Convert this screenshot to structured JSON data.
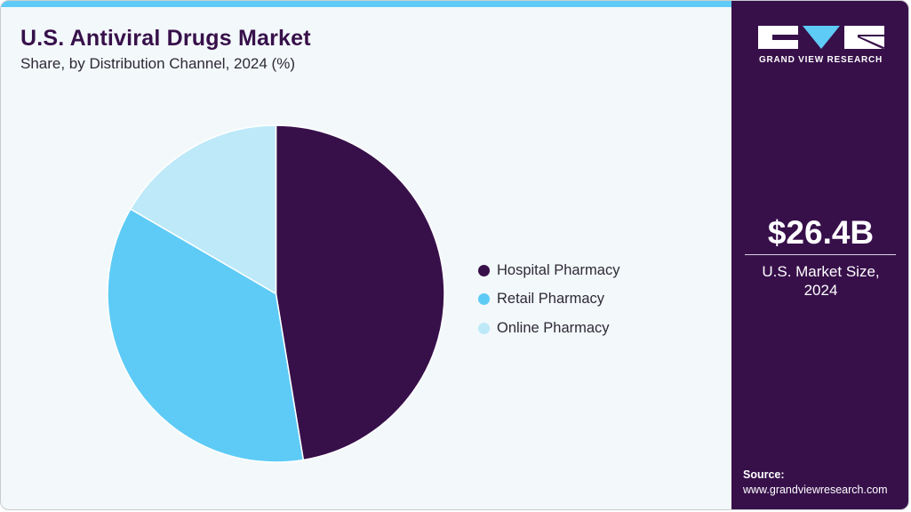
{
  "header": {
    "title": "U.S. Antiviral Drugs Market",
    "subtitle": "Share, by Distribution Channel, 2024 (%)"
  },
  "colors": {
    "accent_bar": "#5ecbf6",
    "brand_purple": "#37104a",
    "background": "#f3f8fb"
  },
  "chart_data": {
    "type": "pie",
    "title": "U.S. Antiviral Drugs Market",
    "subtitle": "Share, by Distribution Channel, 2024 (%)",
    "categories": [
      "Hospital Pharmacy",
      "Retail Pharmacy",
      "Online Pharmacy"
    ],
    "values": [
      47.4,
      36.0,
      16.6
    ],
    "colors": [
      "#37104a",
      "#5ecbf6",
      "#bde9f9"
    ],
    "start_angle_deg": 0,
    "direction": "clockwise",
    "legend_position": "right",
    "data_labels": false
  },
  "legend": {
    "items": [
      {
        "label": "Hospital Pharmacy",
        "color": "#37104a"
      },
      {
        "label": "Retail Pharmacy",
        "color": "#5ecbf6"
      },
      {
        "label": "Online Pharmacy",
        "color": "#bde9f9"
      }
    ]
  },
  "sidebar": {
    "brand": "GRAND VIEW RESEARCH",
    "market_size": "$26.4B",
    "market_caption_line1": "U.S. Market Size,",
    "market_caption_line2": "2024",
    "source_label": "Source:",
    "source_url": "www.grandviewresearch.com"
  }
}
